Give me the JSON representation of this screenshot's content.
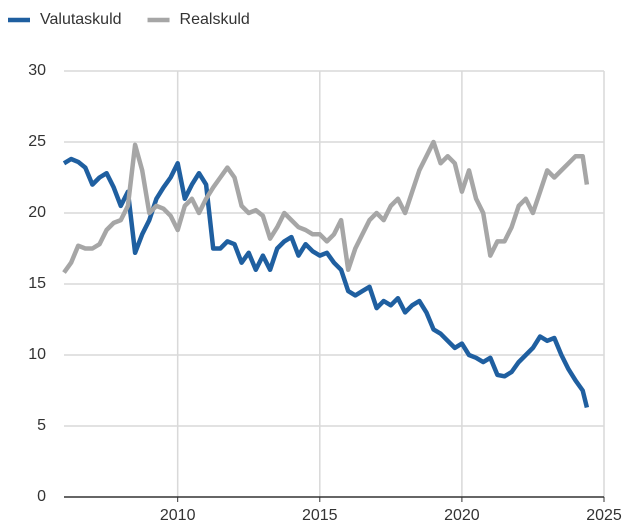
{
  "chart_data": {
    "type": "line",
    "legend": "top-left",
    "grid": true,
    "x": [
      2006.0,
      2006.25,
      2006.5,
      2006.75,
      2007.0,
      2007.25,
      2007.5,
      2007.75,
      2008.0,
      2008.25,
      2008.5,
      2008.75,
      2009.0,
      2009.25,
      2009.5,
      2009.75,
      2010.0,
      2010.25,
      2010.5,
      2010.75,
      2011.0,
      2011.25,
      2011.5,
      2011.75,
      2012.0,
      2012.25,
      2012.5,
      2012.75,
      2013.0,
      2013.25,
      2013.5,
      2013.75,
      2014.0,
      2014.25,
      2014.5,
      2014.75,
      2015.0,
      2015.25,
      2015.5,
      2015.75,
      2016.0,
      2016.25,
      2016.5,
      2016.75,
      2017.0,
      2017.25,
      2017.5,
      2017.75,
      2018.0,
      2018.25,
      2018.5,
      2018.75,
      2019.0,
      2019.25,
      2019.5,
      2019.75,
      2020.0,
      2020.25,
      2020.5,
      2020.75,
      2021.0,
      2021.25,
      2021.5,
      2021.75,
      2022.0,
      2022.25,
      2022.5,
      2022.75,
      2023.0,
      2023.25,
      2023.5,
      2023.75,
      2024.0,
      2024.25,
      2024.4
    ],
    "series": [
      {
        "name": "Valutaskuld",
        "color": "#1f5fa0",
        "values": [
          23.5,
          23.8,
          23.6,
          23.2,
          22.0,
          22.5,
          22.8,
          21.8,
          20.5,
          21.5,
          17.2,
          18.5,
          19.5,
          21.0,
          21.8,
          22.5,
          23.5,
          21.0,
          22.0,
          22.8,
          22.0,
          17.5,
          17.5,
          18.0,
          17.8,
          16.5,
          17.2,
          16.0,
          17.0,
          16.0,
          17.5,
          18.0,
          18.3,
          17.0,
          17.8,
          17.3,
          17.0,
          17.2,
          16.5,
          16.0,
          14.5,
          14.2,
          14.5,
          14.8,
          13.3,
          13.8,
          13.5,
          14.0,
          13.0,
          13.5,
          13.8,
          13.0,
          11.8,
          11.5,
          11.0,
          10.5,
          10.8,
          10.0,
          9.8,
          9.5,
          9.8,
          8.6,
          8.5,
          8.8,
          9.5,
          10.0,
          10.5,
          11.3,
          11.0,
          11.2,
          10.0,
          9.0,
          8.2,
          7.5,
          6.3
        ]
      },
      {
        "name": "Realskuld",
        "color": "#a6a6a6",
        "values": [
          15.8,
          16.5,
          17.7,
          17.5,
          17.5,
          17.8,
          18.8,
          19.3,
          19.5,
          20.5,
          24.8,
          23.0,
          20.0,
          20.5,
          20.3,
          19.8,
          18.8,
          20.5,
          21.0,
          20.0,
          21.0,
          21.8,
          22.5,
          23.2,
          22.5,
          20.5,
          20.0,
          20.2,
          19.8,
          18.2,
          19.0,
          20.0,
          19.5,
          19.0,
          18.8,
          18.5,
          18.5,
          18.0,
          18.5,
          19.5,
          16.0,
          17.5,
          18.5,
          19.5,
          20.0,
          19.5,
          20.5,
          21.0,
          20.0,
          21.5,
          23.0,
          24.0,
          25.0,
          23.5,
          24.0,
          23.5,
          21.5,
          23.0,
          21.0,
          20.0,
          17.0,
          18.0,
          18.0,
          19.0,
          20.5,
          21.0,
          20.0,
          21.5,
          23.0,
          22.5,
          23.0,
          23.5,
          24.0,
          24.0,
          22.0
        ]
      }
    ],
    "xlim": [
      2006,
      2025
    ],
    "xticks": [
      2010,
      2015,
      2020,
      2025
    ],
    "ylim": [
      0,
      30
    ],
    "yticks": [
      0,
      5,
      10,
      15,
      20,
      25,
      30
    ]
  }
}
